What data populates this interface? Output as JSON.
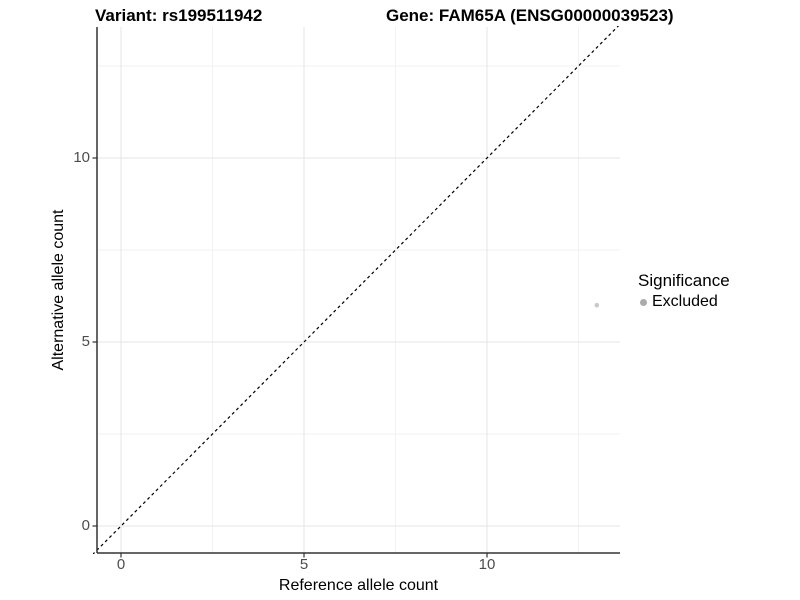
{
  "title": {
    "variant": "Variant: rs199511942",
    "gene": "Gene: FAM65A (ENSG00000039523)"
  },
  "axes": {
    "x_label": "Reference allele count",
    "y_label": "Alternative allele count"
  },
  "legend": {
    "title": "Significance",
    "items": [
      {
        "label": "Excluded",
        "color": "#ababab"
      }
    ]
  },
  "colors": {
    "axis_line": "#333333",
    "tick_label": "#4d4d4d",
    "grid_major": "#e6e6e6",
    "grid_minor": "#f2f2f2",
    "point": "#c9c9c9",
    "legend_dot": "#ababab",
    "reference_line": "#000000"
  },
  "chart_data": {
    "type": "scatter",
    "title": "Variant: rs199511942",
    "subtitle": "Gene: FAM65A (ENSG00000039523)",
    "xlabel": "Reference allele count",
    "ylabel": "Alternative allele count",
    "xlim": [
      -0.78,
      13.65
    ],
    "ylim": [
      -0.78,
      13.65
    ],
    "x_ticks": [
      0,
      5,
      10
    ],
    "y_ticks": [
      0,
      5,
      10
    ],
    "x_minor_ticks": [
      2.5,
      7.5,
      12.5
    ],
    "y_minor_ticks": [
      2.5,
      7.5,
      12.5
    ],
    "grid": true,
    "legend_position": "right",
    "legend_title": "Significance",
    "series": [
      {
        "name": "Excluded",
        "color": "#c9c9c9",
        "points": [
          [
            13,
            6
          ]
        ]
      }
    ],
    "reference_line": {
      "type": "identity y=x",
      "style": "dashed",
      "color": "#000000"
    }
  }
}
